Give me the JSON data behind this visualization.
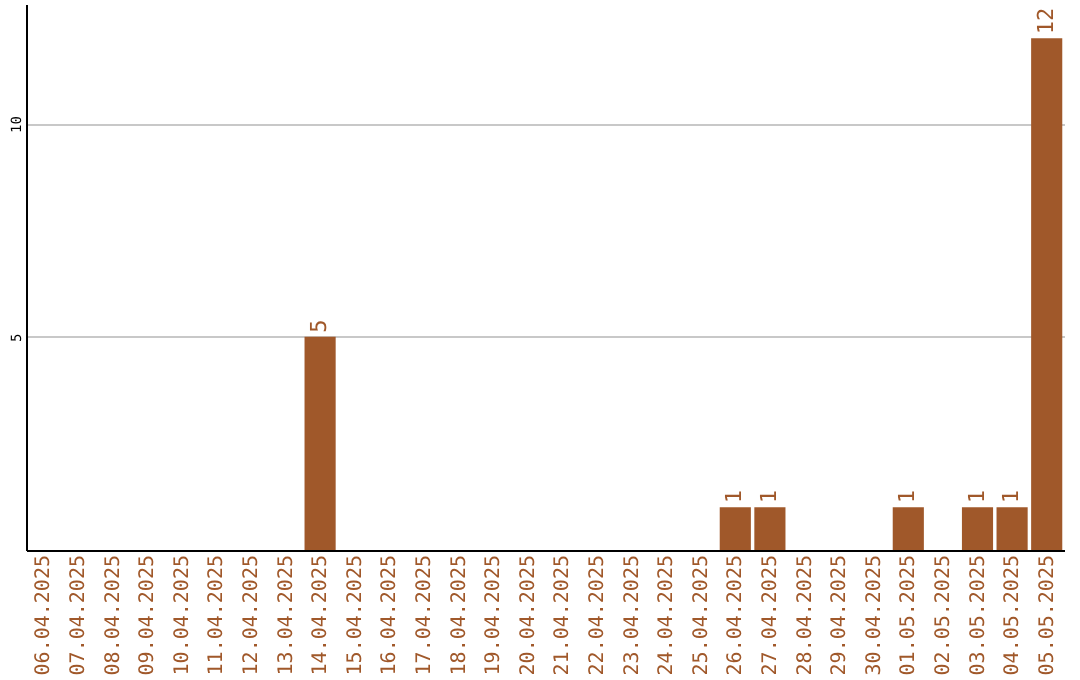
{
  "chart_data": {
    "type": "bar",
    "categories": [
      "06.04.2025",
      "07.04.2025",
      "08.04.2025",
      "09.04.2025",
      "10.04.2025",
      "11.04.2025",
      "12.04.2025",
      "13.04.2025",
      "14.04.2025",
      "15.04.2025",
      "16.04.2025",
      "17.04.2025",
      "18.04.2025",
      "19.04.2025",
      "20.04.2025",
      "21.04.2025",
      "22.04.2025",
      "23.04.2025",
      "24.04.2025",
      "25.04.2025",
      "26.04.2025",
      "27.04.2025",
      "28.04.2025",
      "29.04.2025",
      "30.04.2025",
      "01.05.2025",
      "02.05.2025",
      "03.05.2025",
      "04.05.2025",
      "05.05.2025"
    ],
    "values": [
      0,
      0,
      0,
      0,
      0,
      0,
      0,
      0,
      5,
      0,
      0,
      0,
      0,
      0,
      0,
      0,
      0,
      0,
      0,
      0,
      1,
      1,
      0,
      0,
      0,
      1,
      0,
      1,
      1,
      12
    ],
    "value_labels": [
      null,
      null,
      null,
      null,
      null,
      null,
      null,
      null,
      "5",
      null,
      null,
      null,
      null,
      null,
      null,
      null,
      null,
      null,
      null,
      null,
      "1",
      "1",
      null,
      null,
      null,
      "1",
      null,
      "1",
      "1",
      "12"
    ],
    "color": "#a0582a",
    "ylim": [
      0,
      12.8
    ],
    "yticks": [
      5,
      10
    ],
    "grid": "y"
  }
}
